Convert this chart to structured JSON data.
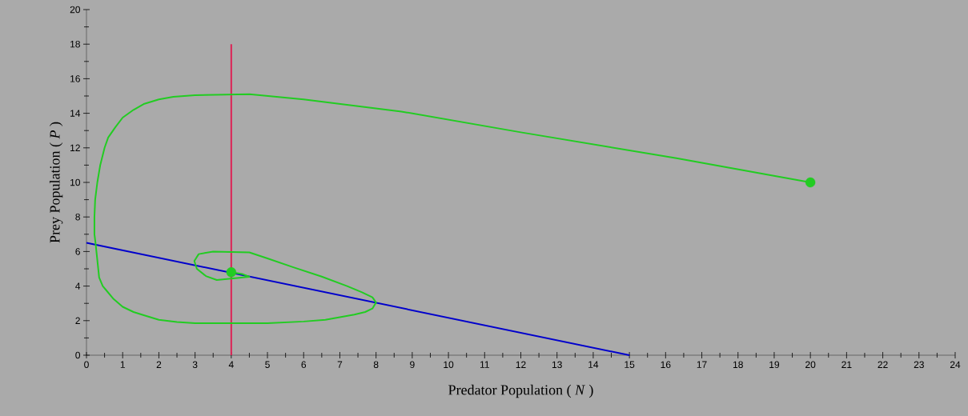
{
  "chart_data": {
    "type": "line",
    "xlabel": "Predator Population ( *N* )",
    "ylabel": "Prey Population ( *P* )",
    "xlim": [
      0,
      24
    ],
    "ylim": [
      0,
      20
    ],
    "xticks": [
      0,
      1,
      2,
      3,
      4,
      5,
      6,
      7,
      8,
      9,
      10,
      11,
      12,
      13,
      14,
      15,
      16,
      17,
      18,
      19,
      20,
      21,
      22,
      23,
      24
    ],
    "yticks": [
      0,
      2,
      4,
      6,
      8,
      10,
      12,
      14,
      16,
      18,
      20
    ],
    "grid": false,
    "series": [
      {
        "color": "#0000cc",
        "marker": "none",
        "x": [
          0,
          15
        ],
        "values": [
          6.5,
          0
        ]
      },
      {
        "color": "#dd2255",
        "marker": "none",
        "x": [
          4,
          4
        ],
        "values": [
          0,
          18
        ]
      },
      {
        "color": "#22cc22",
        "marker": "none",
        "x": [
          20,
          16.3,
          12,
          8.7,
          6,
          4.5,
          3,
          2.4,
          2,
          1.6,
          1.3,
          1,
          0.8,
          0.6,
          0.5,
          0.38,
          0.3,
          0.24,
          0.22,
          0.22,
          0.25,
          0.3,
          0.35,
          0.45,
          0.55,
          0.75,
          1,
          1.3,
          1.6,
          2,
          2.5,
          3,
          5,
          6,
          6.6,
          7,
          7.4,
          7.7,
          7.9,
          8,
          7.9,
          7.6,
          7.2,
          6.5,
          5.7,
          5,
          4.5,
          3.5,
          3.1,
          2.98,
          3.05,
          3.3,
          3.6,
          4.5,
          4.3,
          4
        ],
        "values": [
          10,
          11.4,
          12.9,
          14.1,
          14.8,
          15.1,
          15.05,
          14.95,
          14.8,
          14.55,
          14.2,
          13.75,
          13.2,
          12.6,
          12,
          11,
          10,
          9,
          8,
          7,
          6.5,
          5.5,
          4.5,
          4,
          3.75,
          3.25,
          2.8,
          2.5,
          2.3,
          2.05,
          1.92,
          1.85,
          1.85,
          1.95,
          2.05,
          2.2,
          2.35,
          2.5,
          2.7,
          3.05,
          3.35,
          3.65,
          4,
          4.55,
          5.1,
          5.6,
          5.95,
          6.0,
          5.85,
          5.45,
          5.0,
          4.58,
          4.35,
          4.54,
          4.7,
          4.8
        ]
      },
      {
        "type": "scatter",
        "color": "#22cc22",
        "marker": "circle",
        "x": [
          20
        ],
        "values": [
          10
        ]
      },
      {
        "type": "scatter",
        "color": "#22cc22",
        "marker": "circle",
        "x": [
          4
        ],
        "values": [
          4.8
        ]
      }
    ]
  }
}
